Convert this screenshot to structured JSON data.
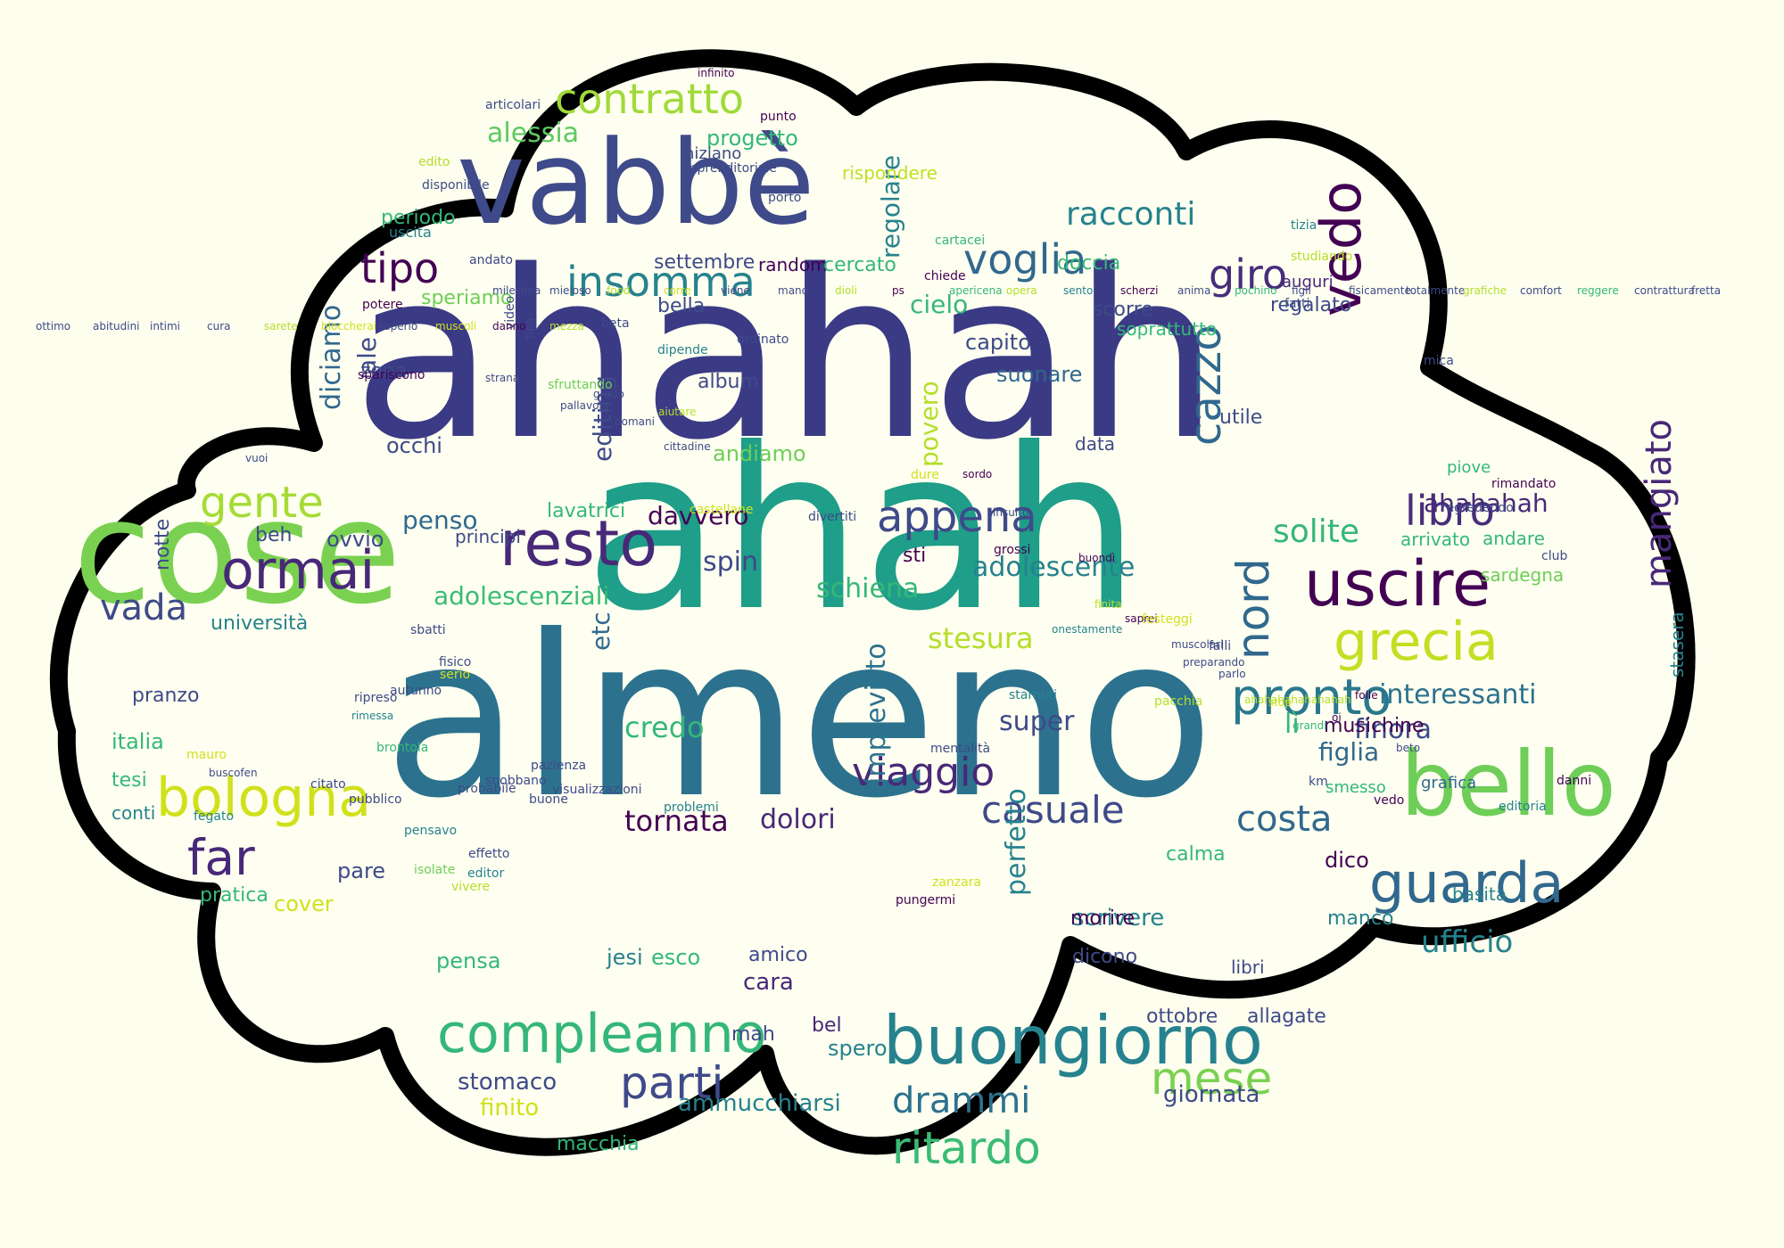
{
  "palette": {
    "background": "#fdfeee",
    "cloud_fill": "#fefff0",
    "cloud_outline": "#000000",
    "colormap": "viridis",
    "c0": "#440154",
    "c1": "#482878",
    "c2": "#3e4a89",
    "c3": "#31688e",
    "c4": "#26828e",
    "c5": "#1f9e89",
    "c6": "#35b779",
    "c7": "#6ece58",
    "c8": "#b5de2b",
    "c9": "#fde725"
  },
  "words": [
    {
      "text": "ahahah",
      "color": "#3b3a85"
    },
    {
      "text": "ahah",
      "color": "#1f9e89"
    },
    {
      "text": "almeno",
      "color": "#2c728e"
    },
    {
      "text": "cose",
      "color": "#7ad151"
    },
    {
      "text": "vabbè",
      "color": "#3e4a89"
    },
    {
      "text": "bello",
      "color": "#6ece58"
    },
    {
      "text": "buongiorno",
      "color": "#26828e"
    },
    {
      "text": "compleanno",
      "color": "#35b779"
    },
    {
      "text": "uscire",
      "color": "#440154"
    },
    {
      "text": "resto",
      "color": "#482878"
    },
    {
      "text": "guarda",
      "color": "#31688e"
    },
    {
      "text": "bologna",
      "color": "#d0e11c"
    },
    {
      "text": "ormai",
      "color": "#482878"
    },
    {
      "text": "grecia",
      "color": "#c2df23"
    },
    {
      "text": "contratto",
      "color": "#a0da39"
    },
    {
      "text": "insomma",
      "color": "#26828e"
    },
    {
      "text": "voglia",
      "color": "#31688e"
    },
    {
      "text": "appena",
      "color": "#3e4a89"
    },
    {
      "text": "pronto",
      "color": "#2a788e"
    },
    {
      "text": "vedo",
      "color": "#440154"
    },
    {
      "text": "cazzo",
      "color": "#31688e"
    },
    {
      "text": "giro",
      "color": "#472d7b"
    },
    {
      "text": "tipo",
      "color": "#440154"
    },
    {
      "text": "gente",
      "color": "#a5db36"
    },
    {
      "text": "libro",
      "color": "#472d7b"
    },
    {
      "text": "ritardo",
      "color": "#3bbb75"
    },
    {
      "text": "parti",
      "color": "#3e4a89"
    },
    {
      "text": "mese",
      "color": "#7ad151"
    },
    {
      "text": "drammi",
      "color": "#2c728e"
    },
    {
      "text": "casuale",
      "color": "#3e4a89"
    },
    {
      "text": "costa",
      "color": "#31688e"
    },
    {
      "text": "viaggio",
      "color": "#482878"
    },
    {
      "text": "tornata",
      "color": "#440154"
    },
    {
      "text": "far",
      "color": "#482878"
    },
    {
      "text": "racconti",
      "color": "#26828e"
    },
    {
      "text": "vada",
      "color": "#3e4a89"
    },
    {
      "text": "nord",
      "color": "#31688e"
    },
    {
      "text": "mangiato",
      "color": "#482878"
    },
    {
      "text": "solite",
      "color": "#35b779"
    },
    {
      "text": "ufficio",
      "color": "#26828e"
    },
    {
      "text": "interessanti",
      "color": "#2c728e"
    },
    {
      "text": "stesura",
      "color": "#b5de2b"
    },
    {
      "text": "adolescente",
      "color": "#26828e"
    },
    {
      "text": "adolescenziali",
      "color": "#3bbb75"
    },
    {
      "text": "credo",
      "color": "#35b779"
    },
    {
      "text": "super",
      "color": "#3e4a89"
    },
    {
      "text": "schiena",
      "color": "#35b779"
    },
    {
      "text": "dolori",
      "color": "#482878"
    },
    {
      "text": "lì",
      "color": "#35b779"
    },
    {
      "text": "finora",
      "color": "#3e4a89"
    },
    {
      "text": "figlia",
      "color": "#31688e"
    },
    {
      "text": "spin",
      "color": "#3e4a89"
    },
    {
      "text": "penso",
      "color": "#31688e"
    },
    {
      "text": "davvero",
      "color": "#440154"
    },
    {
      "text": "ahahahah",
      "color": "#482878"
    },
    {
      "text": "editing",
      "color": "#3e4a89"
    },
    {
      "text": "povero",
      "color": "#b5de2b"
    },
    {
      "text": "imprevisto",
      "color": "#2c728e"
    },
    {
      "text": "perfetto",
      "color": "#26828e"
    },
    {
      "text": "regolare",
      "color": "#26828e"
    },
    {
      "text": "diciamo",
      "color": "#31688e"
    },
    {
      "text": "ale",
      "color": "#3e4a89"
    },
    {
      "text": "etc",
      "color": "#31688e"
    },
    {
      "text": "cielo",
      "color": "#35b779"
    },
    {
      "text": "capito",
      "color": "#3e4a89"
    },
    {
      "text": "suonare",
      "color": "#31688e"
    },
    {
      "text": "alessia",
      "color": "#5ec962"
    },
    {
      "text": "progetto",
      "color": "#35b779"
    },
    {
      "text": "settembre",
      "color": "#3e4a89"
    },
    {
      "text": "periodo",
      "color": "#35b779"
    },
    {
      "text": "speriamo",
      "color": "#6ece58"
    },
    {
      "text": "occhi",
      "color": "#3e4a89"
    },
    {
      "text": "zona",
      "color": "#3e4a89"
    },
    {
      "text": "album",
      "color": "#3e4a89"
    },
    {
      "text": "bella",
      "color": "#3e4a89"
    },
    {
      "text": "andiamo",
      "color": "#6ece58"
    },
    {
      "text": "sti",
      "color": "#440154"
    },
    {
      "text": "ovvio",
      "color": "#3e4a89"
    },
    {
      "text": "beh",
      "color": "#3e4a89"
    },
    {
      "text": "notte",
      "color": "#3e4a89"
    },
    {
      "text": "lavatrici",
      "color": "#35b779"
    },
    {
      "text": "principi",
      "color": "#3e4a89"
    },
    {
      "text": "università",
      "color": "#26828e"
    },
    {
      "text": "pranzo",
      "color": "#3e4a89"
    },
    {
      "text": "italia",
      "color": "#35b779"
    },
    {
      "text": "tesi",
      "color": "#35b779"
    },
    {
      "text": "conti",
      "color": "#26828e"
    },
    {
      "text": "pratica",
      "color": "#35b779"
    },
    {
      "text": "cover",
      "color": "#d0e11c"
    },
    {
      "text": "pare",
      "color": "#3e4a89"
    },
    {
      "text": "pensa",
      "color": "#35b779"
    },
    {
      "text": "jesi",
      "color": "#26828e"
    },
    {
      "text": "esco",
      "color": "#35b779"
    },
    {
      "text": "amico",
      "color": "#3e4a89"
    },
    {
      "text": "cara",
      "color": "#482878"
    },
    {
      "text": "stomaco",
      "color": "#3e4a89"
    },
    {
      "text": "finito",
      "color": "#d0e11c"
    },
    {
      "text": "macchia",
      "color": "#35b779"
    },
    {
      "text": "ammucchiarsi",
      "color": "#26828e"
    },
    {
      "text": "bel",
      "color": "#482878"
    },
    {
      "text": "spero",
      "color": "#26828e"
    },
    {
      "text": "mah",
      "color": "#3e4a89"
    },
    {
      "text": "giornata",
      "color": "#3e4a89"
    },
    {
      "text": "calma",
      "color": "#35b779"
    },
    {
      "text": "dico",
      "color": "#440154"
    },
    {
      "text": "manco",
      "color": "#26828e"
    },
    {
      "text": "scrivere",
      "color": "#26828e"
    },
    {
      "text": "morire",
      "color": "#440154"
    },
    {
      "text": "dicono",
      "color": "#3e4a89"
    },
    {
      "text": "libri",
      "color": "#3e4a89"
    },
    {
      "text": "basita",
      "color": "#26828e"
    },
    {
      "text": "allagate",
      "color": "#3e4a89"
    },
    {
      "text": "ottobre",
      "color": "#3e4a89"
    },
    {
      "text": "musichine",
      "color": "#440154"
    },
    {
      "text": "smesso",
      "color": "#35b779"
    },
    {
      "text": "grafica",
      "color": "#31688e"
    },
    {
      "text": "stasera",
      "color": "#26828e"
    },
    {
      "text": "sardegna",
      "color": "#6ece58"
    },
    {
      "text": "andare",
      "color": "#35b779"
    },
    {
      "text": "arrivato",
      "color": "#35b779"
    },
    {
      "text": "piove",
      "color": "#35b779"
    },
    {
      "text": "regalato",
      "color": "#3e4a89"
    },
    {
      "text": "auguri",
      "color": "#482878"
    },
    {
      "text": "utile",
      "color": "#3e4a89"
    },
    {
      "text": "scorre",
      "color": "#3e4a89"
    },
    {
      "text": "soprattutto",
      "color": "#35b779"
    },
    {
      "text": "doccia",
      "color": "#35b779"
    },
    {
      "text": "data",
      "color": "#3e4a89"
    },
    {
      "text": "rispondere",
      "color": "#c2df23"
    },
    {
      "text": "iniziano",
      "color": "#3e4a89"
    },
    {
      "text": "random",
      "color": "#440154"
    },
    {
      "text": "cercato",
      "color": "#35b779"
    },
    {
      "text": "uscita",
      "color": "#26828e"
    },
    {
      "text": "articolari",
      "color": "#3e4a89"
    },
    {
      "text": "punto",
      "color": "#440154"
    },
    {
      "text": "infinito",
      "color": "#440154"
    },
    {
      "text": "edito",
      "color": "#b5de2b"
    },
    {
      "text": "imprenditoriale",
      "color": "#3e4a89"
    },
    {
      "text": "portò",
      "color": "#3e4a89"
    },
    {
      "text": "disponibile",
      "color": "#3e4a89"
    },
    {
      "text": "andato",
      "color": "#3e4a89"
    },
    {
      "text": "potere",
      "color": "#440154"
    },
    {
      "text": "spariscono",
      "color": "#440154"
    },
    {
      "text": "beta",
      "color": "#3e4a89"
    },
    {
      "text": "dipende",
      "color": "#26828e"
    },
    {
      "text": "ordinato",
      "color": "#3e4a89"
    },
    {
      "text": "cartacei",
      "color": "#35b779"
    },
    {
      "text": "chiede",
      "color": "#440154"
    },
    {
      "text": "tizia",
      "color": "#26828e"
    },
    {
      "text": "studiando",
      "color": "#b5de2b"
    },
    {
      "text": "fatti",
      "color": "#3e4a89"
    },
    {
      "text": "mica",
      "color": "#3e4a89"
    },
    {
      "text": "regredendo",
      "color": "#3e4a89"
    },
    {
      "text": "rimandato",
      "color": "#440154"
    },
    {
      "text": "club",
      "color": "#3e4a89"
    },
    {
      "text": "editoria",
      "color": "#26828e"
    },
    {
      "text": "danni",
      "color": "#440154"
    },
    {
      "text": "vedo",
      "color": "#440154"
    },
    {
      "text": "km",
      "color": "#3e4a89"
    },
    {
      "text": "beto",
      "color": "#3e4a89"
    },
    {
      "text": "pacchia",
      "color": "#b5de2b"
    },
    {
      "text": "mentalità",
      "color": "#3e4a89"
    },
    {
      "text": "starnuti",
      "color": "#26828e"
    },
    {
      "text": "zanzara",
      "color": "#d0e11c"
    },
    {
      "text": "pungermi",
      "color": "#440154"
    },
    {
      "text": "problemi",
      "color": "#26828e"
    },
    {
      "text": "visualizzazioni",
      "color": "#3e4a89"
    },
    {
      "text": "buone",
      "color": "#3e4a89"
    },
    {
      "text": "pazienza",
      "color": "#3e4a89"
    },
    {
      "text": "snobbano",
      "color": "#3e4a89"
    },
    {
      "text": "brontola",
      "color": "#35b779"
    },
    {
      "text": "citato",
      "color": "#3e4a89"
    },
    {
      "text": "mauro",
      "color": "#d0e11c"
    },
    {
      "text": "buscofen",
      "color": "#3e4a89"
    },
    {
      "text": "fegato",
      "color": "#26828e"
    },
    {
      "text": "pubblico",
      "color": "#3e4a89"
    },
    {
      "text": "probabile",
      "color": "#3e4a89"
    },
    {
      "text": "pensavo",
      "color": "#26828e"
    },
    {
      "text": "effetto",
      "color": "#3e4a89"
    },
    {
      "text": "editor",
      "color": "#26828e"
    },
    {
      "text": "isolate",
      "color": "#6ece58"
    },
    {
      "text": "vivere",
      "color": "#b5de2b"
    },
    {
      "text": "sbatti",
      "color": "#3e4a89"
    },
    {
      "text": "fisico",
      "color": "#3e4a89"
    },
    {
      "text": "serio",
      "color": "#d0e11c"
    },
    {
      "text": "autunno",
      "color": "#3e4a89"
    },
    {
      "text": "ripreso",
      "color": "#3e4a89"
    },
    {
      "text": "rimessa",
      "color": "#26828e"
    },
    {
      "text": "vuoi",
      "color": "#3e4a89"
    },
    {
      "text": "strana",
      "color": "#3e4a89"
    },
    {
      "text": "video",
      "color": "#3e4a89"
    },
    {
      "text": "tipa",
      "color": "#3e4a89"
    },
    {
      "text": "sfruttando",
      "color": "#6ece58"
    },
    {
      "text": "pallavolo",
      "color": "#3e4a89"
    },
    {
      "text": "grado",
      "color": "#3e4a89"
    },
    {
      "text": "domani",
      "color": "#3e4a89"
    },
    {
      "text": "aiutare",
      "color": "#b5de2b"
    },
    {
      "text": "cittadine",
      "color": "#3e4a89"
    },
    {
      "text": "castellane",
      "color": "#d0e11c"
    },
    {
      "text": "divertiti",
      "color": "#3e4a89"
    },
    {
      "text": "dure",
      "color": "#d0e11c"
    },
    {
      "text": "sordo",
      "color": "#440154"
    },
    {
      "text": "insulto",
      "color": "#3e4a89"
    },
    {
      "text": "grossi",
      "color": "#440154"
    },
    {
      "text": "buondì",
      "color": "#440154"
    },
    {
      "text": "onestamente",
      "color": "#26828e"
    },
    {
      "text": "finita",
      "color": "#b5de2b"
    },
    {
      "text": "saprei",
      "color": "#440154"
    },
    {
      "text": "festeggi",
      "color": "#d0e11c"
    },
    {
      "text": "muscolari",
      "color": "#3e4a89"
    },
    {
      "text": "falli",
      "color": "#3e4a89"
    },
    {
      "text": "preparando",
      "color": "#3e4a89"
    },
    {
      "text": "parlo",
      "color": "#3e4a89"
    },
    {
      "text": "ahahahahahahahah",
      "color": "#b5de2b"
    },
    {
      "text": "stop",
      "color": "#d0e11c"
    },
    {
      "text": "grandi",
      "color": "#35b779"
    },
    {
      "text": "oi",
      "color": "#440154"
    },
    {
      "text": "folle",
      "color": "#440154"
    },
    {
      "text": "milesima",
      "color": "#3e4a89"
    },
    {
      "text": "mieloso",
      "color": "#3e4a89"
    },
    {
      "text": "food",
      "color": "#b5de2b"
    },
    {
      "text": "corre",
      "color": "#d0e11c"
    },
    {
      "text": "viene",
      "color": "#3e4a89"
    },
    {
      "text": "mano",
      "color": "#3e4a89"
    },
    {
      "text": "dioli",
      "color": "#b5de2b"
    },
    {
      "text": "ps",
      "color": "#440154"
    },
    {
      "text": "apericena",
      "color": "#35b779"
    },
    {
      "text": "opera",
      "color": "#b5de2b"
    },
    {
      "text": "sento",
      "color": "#26828e"
    },
    {
      "text": "scherzi",
      "color": "#440154"
    },
    {
      "text": "anima",
      "color": "#3e4a89"
    },
    {
      "text": "pochino",
      "color": "#35b779"
    },
    {
      "text": "figli",
      "color": "#3e4a89"
    },
    {
      "text": "fisicamente",
      "color": "#3e4a89"
    },
    {
      "text": "totalmente",
      "color": "#3e4a89"
    },
    {
      "text": "grafiche",
      "color": "#b5de2b"
    },
    {
      "text": "comfort",
      "color": "#3e4a89"
    },
    {
      "text": "reggere",
      "color": "#35b779"
    },
    {
      "text": "contrattura",
      "color": "#3e4a89"
    },
    {
      "text": "fretta",
      "color": "#3e4a89"
    },
    {
      "text": "ottimo",
      "color": "#3e4a89"
    },
    {
      "text": "abitudini",
      "color": "#3e4a89"
    },
    {
      "text": "intimi",
      "color": "#3e4a89"
    },
    {
      "text": "cura",
      "color": "#3e4a89"
    },
    {
      "text": "sarete",
      "color": "#b5de2b"
    },
    {
      "text": "bloccherai",
      "color": "#d0e11c"
    },
    {
      "text": "saperlo",
      "color": "#3e4a89"
    },
    {
      "text": "muscoli",
      "color": "#d0e11c"
    },
    {
      "text": "danno",
      "color": "#440154"
    },
    {
      "text": "mezza",
      "color": "#b5de2b"
    }
  ]
}
